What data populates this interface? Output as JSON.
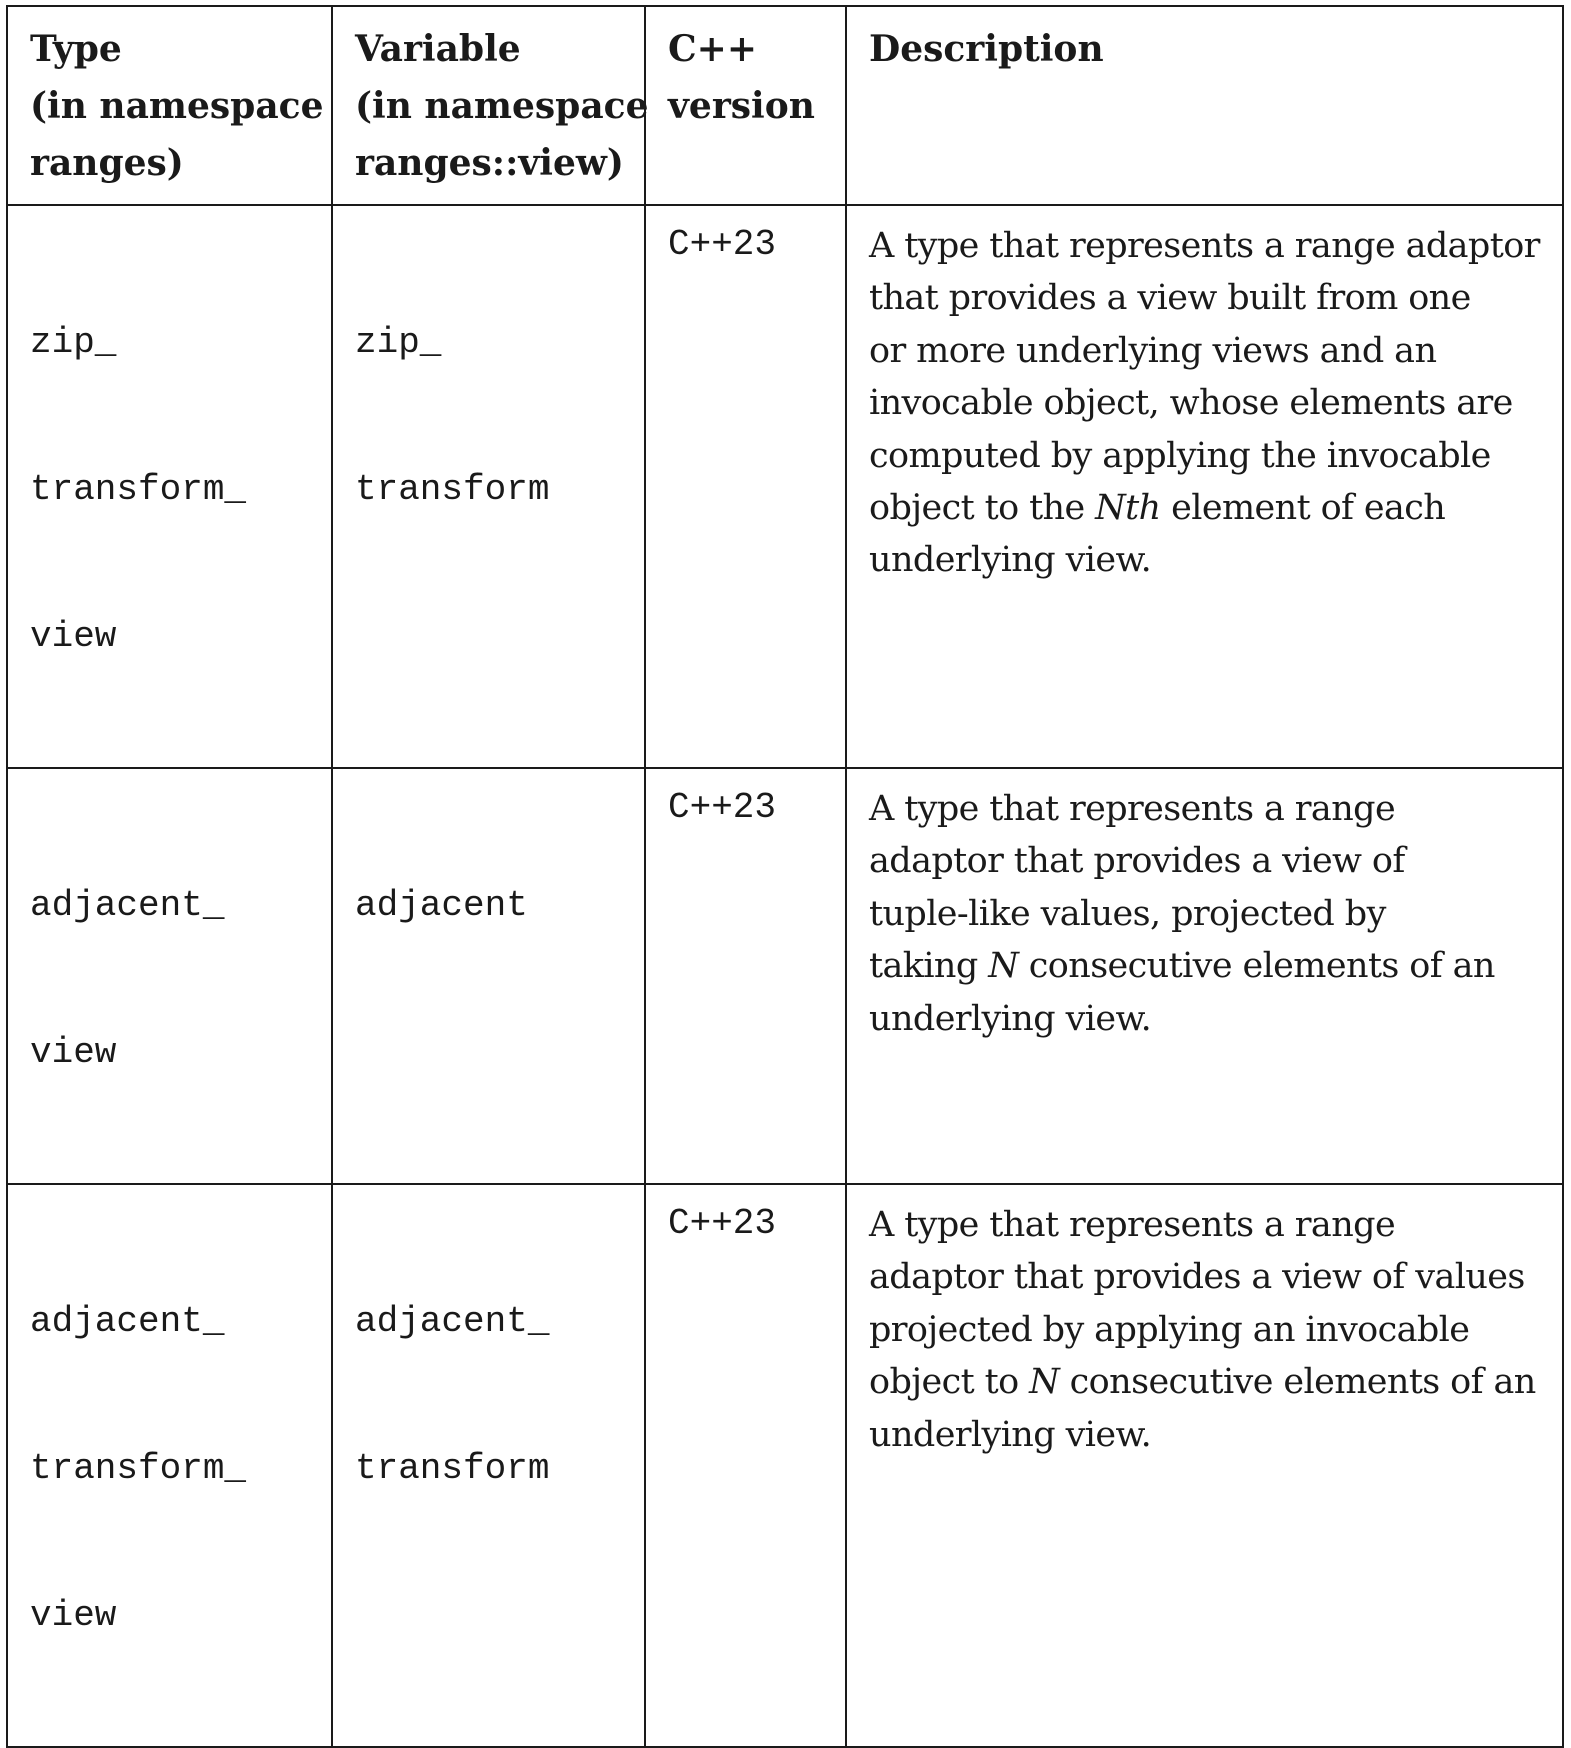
{
  "table": {
    "headers": {
      "type": [
        "Type",
        "(in namespace",
        "ranges)"
      ],
      "variable": [
        "Variable",
        "(in namespace",
        "ranges::view)"
      ],
      "version": [
        "C++",
        "version"
      ],
      "description": [
        "Description"
      ]
    },
    "rows": [
      {
        "type": [
          "zip_",
          "transform_",
          "view"
        ],
        "variable": [
          "zip_",
          "transform"
        ],
        "version": "C++23",
        "description": [
          "A type that represents a range adaptor",
          "that provides a view built from one",
          "or more underlying views and an",
          "invocable object, whose elements are",
          "computed by applying the invocable",
          [
            "object to the ",
            {
              "em": "Nth"
            },
            " element of each"
          ],
          "underlying view."
        ]
      },
      {
        "type": [
          "adjacent_",
          "view"
        ],
        "variable": [
          "adjacent"
        ],
        "version": "C++23",
        "description": [
          "A type that represents a range",
          "adaptor that provides a view of",
          "tuple-like values, projected by",
          [
            "taking ",
            {
              "em": "N"
            },
            " consecutive elements of an"
          ],
          "underlying view."
        ]
      },
      {
        "type": [
          "adjacent_",
          "transform_",
          "view"
        ],
        "variable": [
          "adjacent_",
          "transform"
        ],
        "version": "C++23",
        "description": [
          "A type that represents a range",
          "adaptor that provides a view of values",
          "projected by applying an invocable",
          [
            "object to ",
            {
              "em": "N"
            },
            " consecutive elements of an"
          ],
          "underlying view."
        ]
      }
    ]
  }
}
